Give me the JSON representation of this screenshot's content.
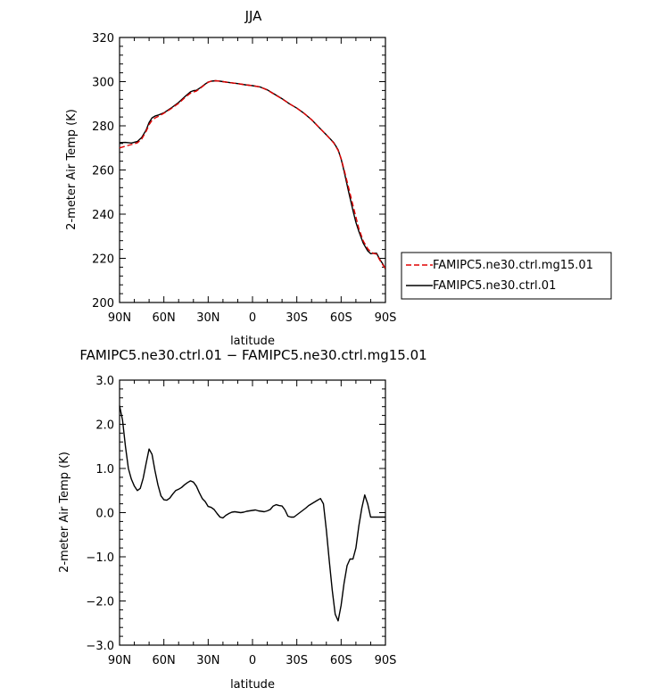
{
  "chart_data": [
    {
      "type": "line",
      "title": "JJA",
      "xlabel": "latitude",
      "ylabel": "2-meter Air Temp (K)",
      "xlim": [
        90,
        -90
      ],
      "ylim": [
        200,
        320
      ],
      "xtick_values": [
        90,
        60,
        30,
        0,
        -30,
        -60,
        -90
      ],
      "xtick_labels": [
        "90N",
        "60N",
        "30N",
        "0",
        "30S",
        "60S",
        "90S"
      ],
      "ytick_values": [
        200,
        220,
        240,
        260,
        280,
        300,
        320
      ],
      "ytick_labels": [
        "200",
        "220",
        "240",
        "260",
        "280",
        "300",
        "320"
      ],
      "legend": {
        "placement": "right",
        "entries": [
          "FAMIPC5.ne30.ctrl.mg15.01",
          "FAMIPC5.ne30.ctrl.01"
        ]
      },
      "series": [
        {
          "name": "FAMIPC5.ne30.ctrl.mg15.01",
          "color": "#e00000",
          "dash": true,
          "x": [
            90,
            86,
            82,
            78,
            75,
            72,
            70,
            68,
            66,
            64,
            60,
            55,
            50,
            45,
            42,
            40,
            38,
            35,
            32,
            30,
            28,
            25,
            22,
            20,
            15,
            10,
            5,
            0,
            -5,
            -10,
            -15,
            -20,
            -25,
            -30,
            -35,
            -40,
            -45,
            -50,
            -55,
            -58,
            -60,
            -62,
            -65,
            -68,
            -70,
            -72,
            -75,
            -78,
            -80,
            -82,
            -84,
            -86,
            -88,
            -90
          ],
          "y": [
            270,
            270.8,
            271.5,
            272.3,
            274,
            277.5,
            280.5,
            282.5,
            283.5,
            284.2,
            285.7,
            287.8,
            290.2,
            293.2,
            294.8,
            295.3,
            295.7,
            297.2,
            298.8,
            299.7,
            300.2,
            300.4,
            300.2,
            300,
            299.5,
            299.1,
            298.6,
            298.2,
            297.6,
            296.2,
            294.2,
            292.2,
            290,
            288,
            285.6,
            282.8,
            279.3,
            275.9,
            272.2,
            268.8,
            265.2,
            260.3,
            252.2,
            244,
            238.7,
            233.5,
            227.8,
            224.4,
            222.9,
            222.2,
            221.9,
            219.4,
            217.3,
            215.3
          ]
        },
        {
          "name": "FAMIPC5.ne30.ctrl.01",
          "color": "#000000",
          "dash": false,
          "x": [
            90,
            86,
            82,
            78,
            75,
            72,
            70,
            68,
            66,
            64,
            60,
            55,
            50,
            45,
            42,
            40,
            38,
            35,
            32,
            30,
            28,
            25,
            22,
            20,
            15,
            10,
            5,
            0,
            -5,
            -10,
            -15,
            -20,
            -25,
            -30,
            -35,
            -40,
            -45,
            -50,
            -55,
            -58,
            -60,
            -62,
            -65,
            -68,
            -70,
            -72,
            -75,
            -78,
            -80,
            -82,
            -84,
            -86,
            -88,
            -90
          ],
          "y": [
            272.4,
            272.5,
            272.2,
            272.9,
            274.7,
            278.1,
            281.5,
            283.6,
            284.4,
            284.8,
            285.9,
            288.1,
            290.6,
            293.7,
            295.4,
            295.9,
            296.1,
            297.4,
            298.9,
            299.8,
            300.2,
            300.4,
            300.2,
            300,
            299.5,
            299.1,
            298.6,
            298.2,
            297.6,
            296.3,
            294.3,
            292.3,
            290,
            288,
            285.6,
            282.8,
            279.3,
            275.9,
            272.4,
            269.1,
            265,
            259.5,
            250.4,
            241.6,
            236.3,
            232.2,
            226.8,
            223.4,
            222.1,
            222.3,
            222.3,
            219.7,
            217.7,
            215.2
          ]
        }
      ]
    },
    {
      "type": "line",
      "title": "FAMIPC5.ne30.ctrl.01 − FAMIPC5.ne30.ctrl.mg15.01",
      "xlabel": "latitude",
      "ylabel": "2-meter Air Temp (K)",
      "xlim": [
        90,
        -90
      ],
      "ylim": [
        -3,
        3
      ],
      "xtick_values": [
        90,
        60,
        30,
        0,
        -30,
        -60,
        -90
      ],
      "xtick_labels": [
        "90N",
        "60N",
        "30N",
        "0",
        "30S",
        "60S",
        "90S"
      ],
      "ytick_values": [
        3,
        2,
        1,
        0,
        -1,
        -2,
        -3
      ],
      "ytick_labels": [
        "3.0",
        "2.0",
        "1.0",
        "0.0",
        "−1.0",
        "−2.0",
        "−3.0"
      ],
      "series": [
        {
          "color": "#000000",
          "dash": false,
          "x": [
            90,
            88,
            86,
            84,
            82,
            80,
            78,
            76,
            74,
            72,
            70,
            68,
            66,
            64,
            62,
            60,
            58,
            56,
            54,
            52,
            50,
            48,
            46,
            44,
            42,
            40,
            38,
            36,
            34,
            32,
            30,
            28,
            26,
            24,
            22,
            20,
            18,
            16,
            14,
            12,
            10,
            8,
            6,
            4,
            2,
            0,
            -2,
            -4,
            -6,
            -8,
            -10,
            -12,
            -14,
            -16,
            -18,
            -20,
            -22,
            -24,
            -26,
            -28,
            -30,
            -32,
            -34,
            -36,
            -38,
            -40,
            -42,
            -44,
            -46,
            -48,
            -50,
            -52,
            -54,
            -56,
            -58,
            -60,
            -62,
            -64,
            -66,
            -68,
            -70,
            -72,
            -74,
            -76,
            -78,
            -80,
            -82,
            -84,
            -86,
            -88,
            -90
          ],
          "y": [
            2.42,
            2.1,
            1.5,
            1.0,
            0.76,
            0.6,
            0.5,
            0.55,
            0.78,
            1.12,
            1.44,
            1.32,
            0.95,
            0.63,
            0.38,
            0.29,
            0.28,
            0.33,
            0.42,
            0.5,
            0.53,
            0.57,
            0.63,
            0.68,
            0.72,
            0.69,
            0.6,
            0.45,
            0.32,
            0.25,
            0.14,
            0.12,
            0.07,
            -0.02,
            -0.1,
            -0.12,
            -0.06,
            -0.02,
            0.01,
            0.02,
            0.01,
            0.0,
            0.01,
            0.03,
            0.04,
            0.05,
            0.06,
            0.04,
            0.03,
            0.02,
            0.04,
            0.07,
            0.15,
            0.18,
            0.16,
            0.15,
            0.06,
            -0.08,
            -0.1,
            -0.1,
            -0.05,
            0.0,
            0.05,
            0.1,
            0.16,
            0.2,
            0.24,
            0.28,
            0.32,
            0.2,
            -0.4,
            -1.1,
            -1.76,
            -2.3,
            -2.45,
            -2.1,
            -1.6,
            -1.2,
            -1.05,
            -1.05,
            -0.8,
            -0.3,
            0.1,
            0.4,
            0.2,
            -0.1,
            -0.1,
            -0.1,
            -0.1,
            -0.1,
            -0.1
          ]
        }
      ]
    }
  ]
}
